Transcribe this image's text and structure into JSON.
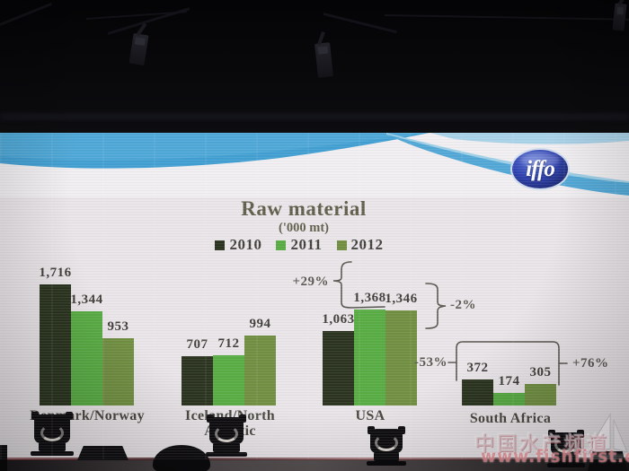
{
  "logo": {
    "text": "iffo",
    "brand_color": "#1f2f9e"
  },
  "watermark": {
    "line1": "中国水产频道",
    "line2": "www.fishfirst.cn"
  },
  "scene": {
    "description_colors": {
      "screen_bg": "#e9e5e8",
      "wave_blue": "#3f9ed2",
      "wave_light_blue": "#a8d2e8"
    }
  },
  "chart_data": {
    "type": "bar",
    "title": "Raw material",
    "subtitle": "('000 mt)",
    "legend_position": "top",
    "grid": false,
    "ylim": [
      0,
      1800
    ],
    "categories": [
      "Denmark/Norway",
      "Iceland/North Atlantic",
      "USA",
      "South Africa"
    ],
    "category_labels": [
      [
        "Denmark/Norway"
      ],
      [
        "Iceland/North",
        "Atlantic"
      ],
      [
        "USA"
      ],
      [
        "South Africa"
      ]
    ],
    "series": [
      {
        "name": "2010",
        "color": "#27311b",
        "values": [
          1716,
          707,
          1063,
          372
        ],
        "labels": [
          "1,716",
          "707",
          "1,063",
          "372"
        ]
      },
      {
        "name": "2011",
        "color": "#56ab41",
        "values": [
          1344,
          712,
          1368,
          174
        ],
        "labels": [
          "1,344",
          "712",
          "1,368",
          "174"
        ]
      },
      {
        "name": "2012",
        "color": "#6f8e3f",
        "values": [
          953,
          994,
          1346,
          305
        ],
        "labels": [
          "953",
          "994",
          "1,346",
          "305"
        ]
      }
    ],
    "annotations": [
      {
        "text": "+29%",
        "group": "USA"
      },
      {
        "text": "-2%",
        "group": "USA"
      },
      {
        "text": "-53%",
        "group": "South Africa"
      },
      {
        "text": "+76%",
        "group": "South Africa"
      }
    ]
  }
}
